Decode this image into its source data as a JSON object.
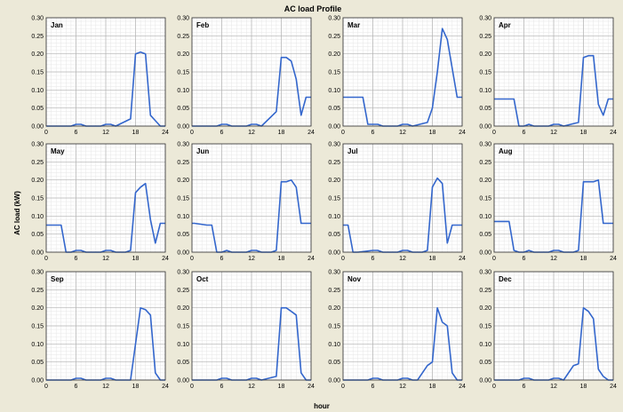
{
  "chart_data": {
    "type": "line",
    "title": "AC load Profile",
    "xlabel": "hour",
    "ylabel": "AC load (kW)",
    "x_ticks": [
      0,
      6,
      12,
      18,
      24
    ],
    "y_ticks": [
      "0.00",
      "0.05",
      "0.10",
      "0.15",
      "0.20",
      "0.25",
      "0.30"
    ],
    "xlim": [
      0,
      24
    ],
    "ylim": [
      0,
      0.3
    ],
    "grid": true,
    "line_color": "#3366cc",
    "background_color": "#ece9d8",
    "plot_color": "#ffffff",
    "panels": [
      {
        "label": "Jan",
        "x": [
          0,
          5,
          6,
          7,
          8,
          11,
          12,
          13,
          14,
          17,
          18,
          19,
          20,
          21,
          22,
          23,
          24
        ],
        "y": [
          0,
          0,
          0.005,
          0.005,
          0,
          0,
          0.005,
          0.005,
          0,
          0.02,
          0.2,
          0.205,
          0.2,
          0.03,
          0.015,
          0,
          0
        ]
      },
      {
        "label": "Feb",
        "x": [
          0,
          5,
          6,
          7,
          8,
          11,
          12,
          13,
          14,
          17,
          18,
          19,
          20,
          21,
          22,
          23,
          24
        ],
        "y": [
          0,
          0,
          0.005,
          0.005,
          0,
          0,
          0.005,
          0.005,
          0,
          0.04,
          0.19,
          0.19,
          0.18,
          0.13,
          0.03,
          0.08,
          0.08
        ]
      },
      {
        "label": "Mar",
        "x": [
          0,
          0.5,
          2,
          3,
          4,
          5,
          6,
          7,
          8,
          11,
          12,
          13,
          14,
          17,
          18,
          19,
          20,
          21,
          22,
          23,
          24
        ],
        "y": [
          0.08,
          0.08,
          0.08,
          0.08,
          0.08,
          0.005,
          0.005,
          0.005,
          0,
          0,
          0.005,
          0.005,
          0,
          0.01,
          0.05,
          0.15,
          0.27,
          0.24,
          0.16,
          0.08,
          0.08
        ]
      },
      {
        "label": "Apr",
        "x": [
          0,
          0.5,
          3,
          4,
          5,
          6,
          7,
          8,
          11,
          12,
          13,
          14,
          17,
          18,
          19,
          20,
          21,
          22,
          23,
          24
        ],
        "y": [
          0.075,
          0.075,
          0.075,
          0.075,
          0,
          0,
          0.005,
          0,
          0,
          0.005,
          0.005,
          0,
          0.01,
          0.19,
          0.195,
          0.195,
          0.06,
          0.03,
          0.075,
          0.075
        ]
      },
      {
        "label": "May",
        "x": [
          0,
          0.5,
          3,
          4,
          5,
          6,
          7,
          8,
          11,
          12,
          13,
          14,
          16,
          17,
          18,
          19,
          20,
          21,
          22,
          23,
          24
        ],
        "y": [
          0.075,
          0.075,
          0.075,
          0,
          0,
          0.005,
          0.005,
          0,
          0,
          0.005,
          0.005,
          0,
          0,
          0.005,
          0.165,
          0.18,
          0.19,
          0.09,
          0.025,
          0.08,
          0.08
        ]
      },
      {
        "label": "Jun",
        "x": [
          0,
          0.5,
          3,
          4,
          5,
          6,
          7,
          8,
          11,
          12,
          13,
          14,
          16,
          17,
          18,
          19,
          20,
          21,
          22,
          23,
          24
        ],
        "y": [
          0.08,
          0.08,
          0.075,
          0.075,
          0,
          0,
          0.005,
          0,
          0,
          0.005,
          0.005,
          0,
          0,
          0.005,
          0.195,
          0.195,
          0.2,
          0.18,
          0.08,
          0.08,
          0.08
        ]
      },
      {
        "label": "Jul",
        "x": [
          0,
          1,
          2,
          3,
          6,
          7,
          8,
          11,
          12,
          13,
          14,
          16,
          17,
          18,
          19,
          20,
          21,
          22,
          23,
          24
        ],
        "y": [
          0.075,
          0.075,
          0,
          0,
          0.005,
          0.005,
          0,
          0,
          0.005,
          0.005,
          0,
          0,
          0.005,
          0.18,
          0.205,
          0.19,
          0.025,
          0.075,
          0.075,
          0.075
        ]
      },
      {
        "label": "Aug",
        "x": [
          0,
          0.5,
          3,
          4,
          5,
          6,
          7,
          8,
          11,
          12,
          13,
          14,
          16,
          17,
          18,
          19,
          20,
          21,
          22,
          23,
          24
        ],
        "y": [
          0.085,
          0.085,
          0.085,
          0.005,
          0,
          0,
          0.005,
          0,
          0,
          0.005,
          0.005,
          0,
          0,
          0.005,
          0.195,
          0.195,
          0.195,
          0.2,
          0.08,
          0.08,
          0.08
        ]
      },
      {
        "label": "Sep",
        "x": [
          0,
          5,
          6,
          7,
          8,
          11,
          12,
          13,
          14,
          17,
          18,
          19,
          20,
          21,
          22,
          23,
          24
        ],
        "y": [
          0,
          0,
          0.005,
          0.005,
          0,
          0,
          0.005,
          0.005,
          0,
          0,
          0.1,
          0.2,
          0.195,
          0.18,
          0.02,
          0,
          0
        ]
      },
      {
        "label": "Oct",
        "x": [
          0,
          5,
          6,
          7,
          8,
          11,
          12,
          13,
          14,
          17,
          18,
          19,
          20,
          21,
          22,
          23,
          24
        ],
        "y": [
          0,
          0,
          0.005,
          0.005,
          0,
          0,
          0.005,
          0.005,
          0,
          0.01,
          0.2,
          0.2,
          0.19,
          0.18,
          0.02,
          0,
          0
        ]
      },
      {
        "label": "Nov",
        "x": [
          0,
          5,
          6,
          7,
          8,
          11,
          12,
          13,
          14,
          15,
          16,
          17,
          18,
          19,
          20,
          21,
          22,
          23,
          24
        ],
        "y": [
          0,
          0,
          0.005,
          0.005,
          0,
          0,
          0.005,
          0.005,
          0,
          0,
          0.02,
          0.04,
          0.05,
          0.2,
          0.16,
          0.15,
          0.02,
          0,
          0
        ]
      },
      {
        "label": "Dec",
        "x": [
          0,
          5,
          6,
          7,
          8,
          11,
          12,
          13,
          14,
          16,
          17,
          18,
          19,
          20,
          21,
          22,
          23,
          24
        ],
        "y": [
          0,
          0,
          0.005,
          0.005,
          0,
          0,
          0.005,
          0.005,
          0,
          0.04,
          0.045,
          0.2,
          0.19,
          0.17,
          0.03,
          0.01,
          0,
          0
        ]
      }
    ]
  }
}
